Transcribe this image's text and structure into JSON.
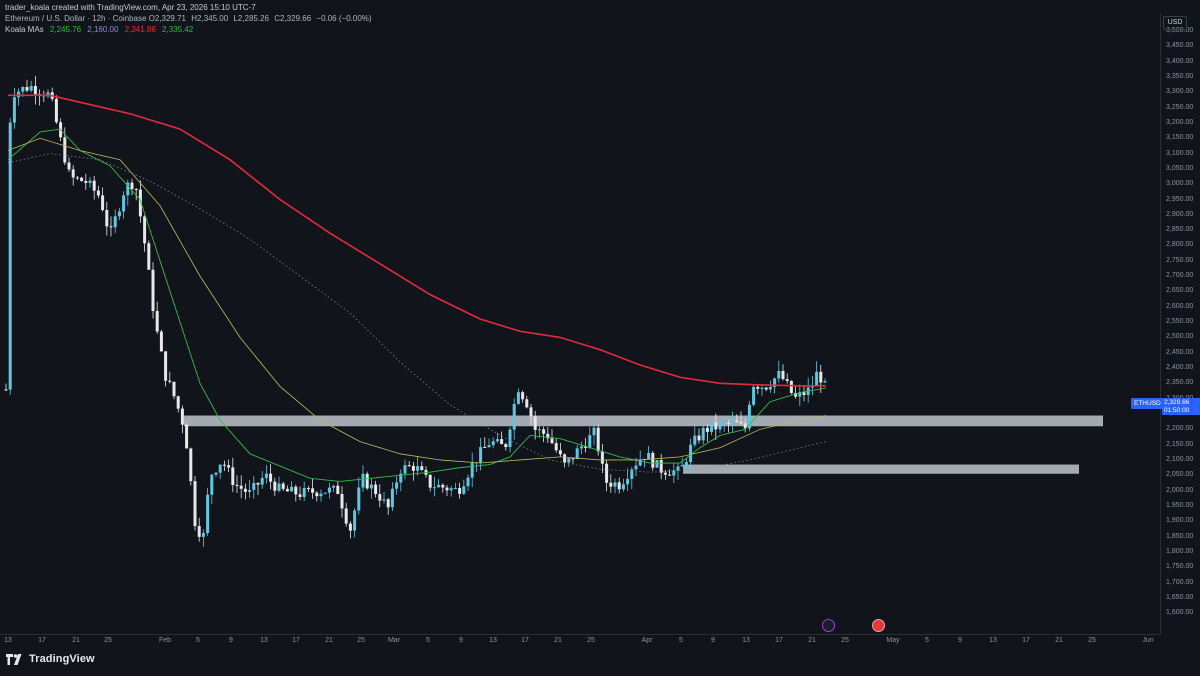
{
  "header": {
    "credit": "trader_koala created with TradingView.com, Apr 23, 2026 15:10 UTC-7",
    "instrument": "Ethereum / U.S. Dollar · 12h · Coinbase",
    "ohlc": {
      "o": "O2,329.71",
      "h": "H2,345.00",
      "l": "L2,285.26",
      "c": "C2,329.66",
      "change": "−0.06 (−0.00%)"
    },
    "mas": {
      "label": "Koala MAs",
      "v1": "2,245.76",
      "v2": "2,160.00",
      "v3": "2,341.86",
      "v4": "2,335.42"
    }
  },
  "colors": {
    "background": "#12141c",
    "up": "#5fc8e0",
    "down": "#e8e8e8",
    "ma_red": "#e32b3a",
    "ma_green": "#2fbd45",
    "ma_yellow": "#bdbd5a",
    "zone": "#bfc3cc"
  },
  "price_axis": {
    "currency": "USD",
    "labels": [
      "3,500.00",
      "3,450.00",
      "3,400.00",
      "3,350.00",
      "3,300.00",
      "3,250.00",
      "3,200.00",
      "3,150.00",
      "3,100.00",
      "3,050.00",
      "3,000.00",
      "2,950.00",
      "2,900.00",
      "2,850.00",
      "2,800.00",
      "2,750.00",
      "2,700.00",
      "2,650.00",
      "2,600.00",
      "2,550.00",
      "2,500.00",
      "2,450.00",
      "2,400.00",
      "2,350.00",
      "2,300.00",
      "2,250.00",
      "2,200.00",
      "2,150.00",
      "2,100.00",
      "2,050.00",
      "2,000.00",
      "1,950.00",
      "1,900.00",
      "1,850.00",
      "1,800.00",
      "1,750.00",
      "1,700.00",
      "1,650.00",
      "1,600.00"
    ],
    "symbol_tag": "ETHUSD",
    "last_price": "2,329.66",
    "countdown": "01:50:00"
  },
  "time_axis": {
    "labels": [
      "13",
      "17",
      "21",
      "25",
      "Feb",
      "5",
      "9",
      "13",
      "17",
      "21",
      "25",
      "Mar",
      "5",
      "9",
      "13",
      "17",
      "21",
      "25",
      "Apr",
      "5",
      "9",
      "13",
      "17",
      "21",
      "25",
      "May",
      "5",
      "9",
      "13",
      "17",
      "21",
      "25",
      "Jun"
    ]
  },
  "zones": [
    {
      "from_price": 2210,
      "to_price": 2245
    },
    {
      "from_price": 2055,
      "to_price": 2085
    }
  ],
  "branding": {
    "name": "TradingView"
  }
}
